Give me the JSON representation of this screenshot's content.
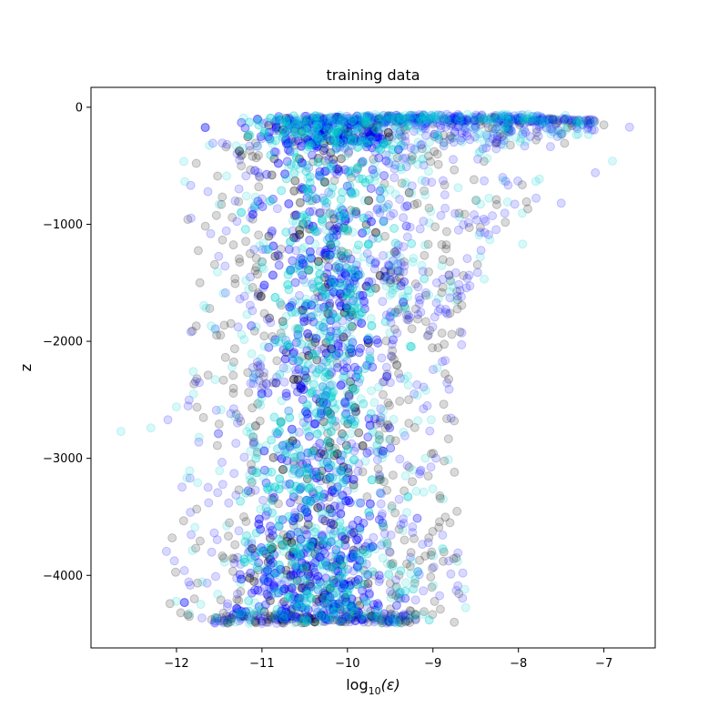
{
  "chart_data": {
    "type": "scatter",
    "title": "training data",
    "xlabel": "log",
    "xlabel_sub": "10",
    "xlabel_suffix": "(ε)",
    "ylabel": "z",
    "xlim": [
      -13.0,
      -6.4
    ],
    "ylim": [
      -4620,
      170
    ],
    "x_ticks": [
      -12,
      -11,
      -10,
      -9,
      -8,
      -7
    ],
    "x_tick_labels": [
      "−12",
      "−11",
      "−10",
      "−9",
      "−8",
      "−7"
    ],
    "y_ticks": [
      0,
      -1000,
      -2000,
      -3000,
      -4000
    ],
    "y_tick_labels": [
      "0",
      "−1000",
      "−2000",
      "−3000",
      "−4000"
    ],
    "grid": false,
    "marker_alpha": 0.15,
    "series_colors": {
      "black": "#000000",
      "blue": "#0000ff",
      "cyan": "#00ced1"
    },
    "band_profile": {
      "z": [
        -80,
        -300,
        -800,
        -1500,
        -2000,
        -2500,
        -3000,
        -3500,
        -3900,
        -4400
      ],
      "core_left": [
        -10.95,
        -10.9,
        -10.85,
        -10.8,
        -10.8,
        -10.85,
        -10.9,
        -11.0,
        -11.1,
        -11.1
      ],
      "core_right": [
        -9.45,
        -9.5,
        -9.55,
        -9.6,
        -9.65,
        -9.7,
        -9.75,
        -9.7,
        -9.6,
        -9.6
      ]
    },
    "outliers": [
      {
        "x": -12.65,
        "y": -2770,
        "c": "cyan"
      },
      {
        "x": -12.3,
        "y": -2740,
        "c": "cyan"
      },
      {
        "x": -12.1,
        "y": -2670,
        "c": "blue"
      },
      {
        "x": -12.0,
        "y": -2560,
        "c": "cyan"
      },
      {
        "x": -12.05,
        "y": -3680,
        "c": "black"
      },
      {
        "x": -11.95,
        "y": -4320,
        "c": "black"
      },
      {
        "x": -11.85,
        "y": -4350,
        "c": "black"
      },
      {
        "x": -11.6,
        "y": -1080,
        "c": "blue"
      },
      {
        "x": -11.8,
        "y": -2450,
        "c": "cyan"
      },
      {
        "x": -11.55,
        "y": -1900,
        "c": "cyan"
      },
      {
        "x": -7.0,
        "y": -150,
        "c": "black"
      },
      {
        "x": -6.7,
        "y": -170,
        "c": "blue"
      },
      {
        "x": -6.9,
        "y": -460,
        "c": "cyan"
      },
      {
        "x": -7.1,
        "y": -560,
        "c": "blue"
      },
      {
        "x": -7.3,
        "y": -230,
        "c": "cyan"
      },
      {
        "x": -7.45,
        "y": -70,
        "c": "cyan"
      },
      {
        "x": -7.5,
        "y": -820,
        "c": "blue"
      },
      {
        "x": -7.95,
        "y": -1170,
        "c": "cyan"
      },
      {
        "x": -8.8,
        "y": -1760,
        "c": "black"
      },
      {
        "x": -8.75,
        "y": -2680,
        "c": "black"
      },
      {
        "x": -8.8,
        "y": -3550,
        "c": "black"
      },
      {
        "x": -8.65,
        "y": -3980,
        "c": "blue"
      },
      {
        "x": -8.75,
        "y": -4400,
        "c": "black"
      },
      {
        "x": -8.95,
        "y": -2230,
        "c": "cyan"
      }
    ]
  }
}
